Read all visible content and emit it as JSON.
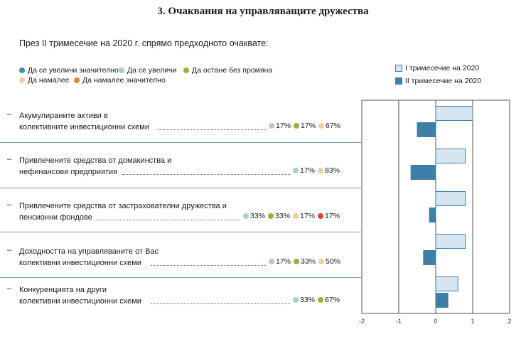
{
  "title": "3.   Очаквания на управляващите дружества",
  "subtitle": "През II тримесечие на 2020 г. спрямо предходното очаквате:",
  "dot_legend": [
    {
      "label": "Да се увеличи значително",
      "color": "#3d8fb5"
    },
    {
      "label": "Да се увеличи",
      "color": "#a8cbe0"
    },
    {
      "label": "Да остане без промяна",
      "color": "#8ab83a"
    },
    {
      "label": "Да намалее",
      "color": "#f5cc9a"
    },
    {
      "label": "Да намалее значително",
      "color": "#e8831f"
    }
  ],
  "rows": [
    {
      "dash": "–",
      "line1": "Акумулираните активи в",
      "line2": "колективните инвестиционни схеми",
      "pcts": [
        {
          "value": "17%",
          "color": "#a8cbe0"
        },
        {
          "value": "17%",
          "color": "#8ab83a"
        },
        {
          "value": "67%",
          "color": "#f5cc9a"
        }
      ]
    },
    {
      "dash": "–",
      "line1": "Привлечените средства от домакинства и",
      "line2": "нефинансови предприятия",
      "pcts": [
        {
          "value": "17%",
          "color": "#a8cbe0"
        },
        {
          "value": "83%",
          "color": "#f5cc9a"
        }
      ]
    },
    {
      "dash": "–",
      "line1": "Привлечените средства от застрахователни дружества и",
      "line2": "пенсионни фондове",
      "pcts": [
        {
          "value": "33%",
          "color": "#a8cbe0"
        },
        {
          "value": "33%",
          "color": "#8ab83a"
        },
        {
          "value": "17%",
          "color": "#f5cc9a"
        },
        {
          "value": "17%",
          "color": "#d94a2a"
        }
      ]
    },
    {
      "dash": "–",
      "line1": "Доходността на управляваните от Вас",
      "line2": "колективни инвестиционни схеми",
      "pcts": [
        {
          "value": "17%",
          "color": "#a8cbe0"
        },
        {
          "value": "33%",
          "color": "#8ab83a"
        },
        {
          "value": "50%",
          "color": "#f5cc9a"
        }
      ]
    },
    {
      "dash": "–",
      "line1": "Конкуренцията на други",
      "line2": "колективни инвестиционни схеми",
      "pcts": [
        {
          "value": "33%",
          "color": "#a8cbe0"
        },
        {
          "value": "67%",
          "color": "#8ab83a"
        }
      ]
    }
  ],
  "chart_data": {
    "type": "bar",
    "orientation": "horizontal",
    "categories": [
      "Акумулираните активи в колективните инвестиционни схеми",
      "Привлечените средства от домакинства и нефинансови предприятия",
      "Привлечените средства от застрахователни дружества и пенсионни фондове",
      "Доходността на управляваните от Вас колективни инвестиционни схеми",
      "Конкуренцията на други колективни инвестиционни схеми"
    ],
    "series": [
      {
        "name": "I тримесечие на 2020",
        "values": [
          1.0,
          0.8,
          0.8,
          0.8,
          0.6
        ],
        "color": "#d6e6f0",
        "border": "#3d7fa6"
      },
      {
        "name": "II тримесечие на 2020",
        "values": [
          -0.5,
          -0.67,
          -0.17,
          -0.33,
          0.33
        ],
        "color": "#3d7fa6",
        "border": "#3d7fa6"
      }
    ],
    "xlim": [
      -2,
      2
    ],
    "xticks": [
      "-2",
      "-1",
      "0",
      "1",
      "2"
    ],
    "grid": true,
    "legend": "top-right"
  }
}
